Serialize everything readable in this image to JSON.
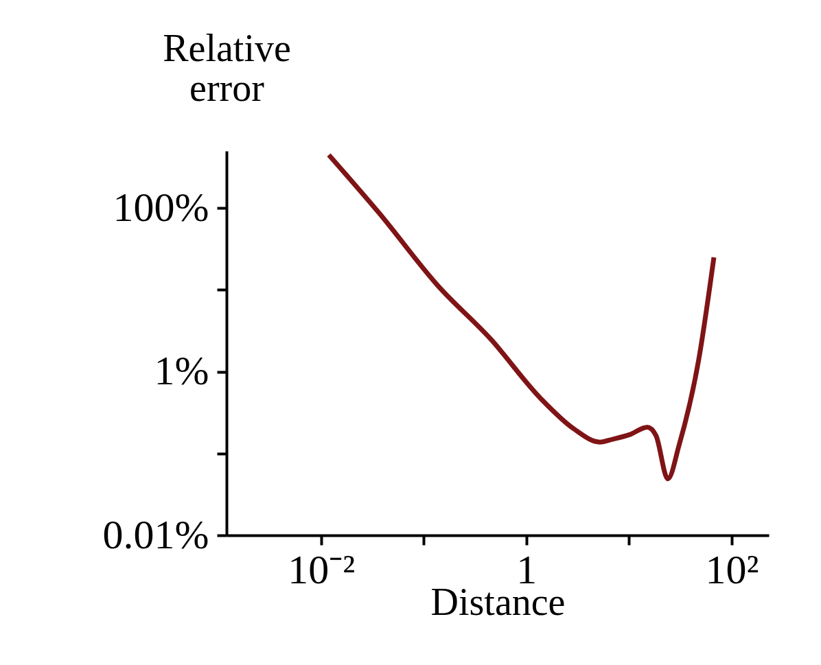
{
  "chart_data": {
    "type": "line",
    "xlabel": "Distance",
    "ylabel": "Relative error",
    "log": "xy",
    "grid": false,
    "marker": "none",
    "line_style": "solid",
    "xlim": [
      0.0012,
      230
    ],
    "ylim": [
      0.01,
      500
    ],
    "xticks": [
      {
        "value": 0.01,
        "label": "10⁻²"
      },
      {
        "value": 0.1,
        "label": null
      },
      {
        "value": 1,
        "label": "1"
      },
      {
        "value": 10,
        "label": null
      },
      {
        "value": 100,
        "label": "10²"
      }
    ],
    "yticks": [
      {
        "value": 0.01,
        "label": "0.01%"
      },
      {
        "value": 0.1,
        "label": null
      },
      {
        "value": 1,
        "label": "1%"
      },
      {
        "value": 10,
        "label": null
      },
      {
        "value": 100,
        "label": "100%"
      }
    ],
    "x": [
      0.0119,
      0.0366,
      0.138,
      0.45,
      1.38,
      2.9,
      5.2,
      7.0,
      10.1,
      15.1,
      18.3,
      23.9,
      30.7,
      47.8,
      67.1
    ],
    "series": [
      {
        "color": "#7f1416",
        "values": [
          447,
          87.7,
          11.2,
          2.5,
          0.47,
          0.2,
          0.138,
          0.15,
          0.17,
          0.21,
          0.166,
          0.049,
          0.126,
          1.42,
          25
        ]
      }
    ]
  }
}
